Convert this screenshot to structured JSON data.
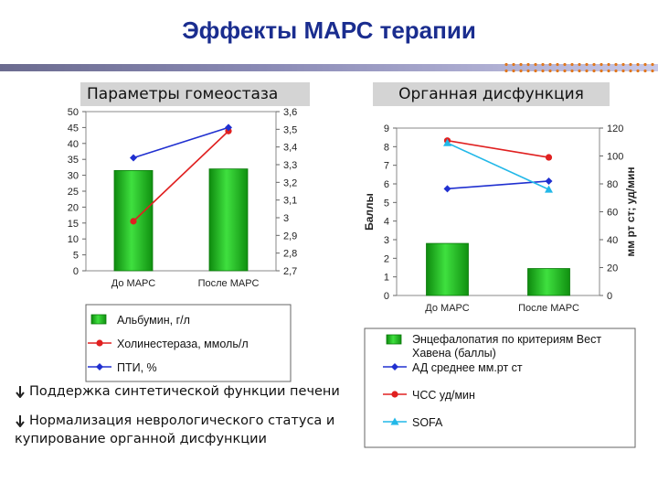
{
  "title": "Эффекты МАРС терапии",
  "left_header": "Параметры гомеостаза",
  "right_header": "Органная дисфункция",
  "bullets": [
    {
      "text": "Поддержка синтетической функции печени"
    },
    {
      "text1": "Нормализация неврологического статуса и",
      "text2": "купирование органной дисфункции"
    }
  ],
  "chart_data": [
    {
      "type": "bar",
      "categories": [
        "До МАРС",
        "После МАРС"
      ],
      "y_left": {
        "ticks": [
          "50",
          "45",
          "40",
          "35",
          "30",
          "25",
          "20",
          "15",
          "10",
          "5",
          "0"
        ],
        "range": [
          0,
          50
        ]
      },
      "y_right": {
        "ticks": [
          "3,6",
          "3,5",
          "3,4",
          "3,3",
          "3,2",
          "3,1",
          "3",
          "2,9",
          "2,8",
          "2,7"
        ],
        "range": [
          2.7,
          3.6
        ]
      },
      "series": [
        {
          "name": "Альбумин, г/л",
          "kind": "bar",
          "axis": "left",
          "color": "#22bb22",
          "values": [
            31.5,
            32
          ]
        },
        {
          "name": "Холинестераза, ммоль/л",
          "kind": "line",
          "axis": "right",
          "color": "#e02020",
          "values": [
            2.98,
            3.49
          ]
        },
        {
          "name": "ПТИ, %",
          "kind": "line",
          "axis": "left",
          "color": "#2030d0",
          "values": [
            35.5,
            45
          ]
        }
      ]
    },
    {
      "type": "bar",
      "categories": [
        "До МАРС",
        "После МАРС"
      ],
      "ylabel_left": "Баллы",
      "ylabel_right": "мм рт ст; уд/мин",
      "y_left": {
        "ticks": [
          "9",
          "8",
          "7",
          "6",
          "5",
          "4",
          "3",
          "2",
          "1",
          "0"
        ],
        "range": [
          0,
          9
        ]
      },
      "y_right": {
        "ticks": [
          "120",
          "100",
          "80",
          "60",
          "40",
          "20",
          "0"
        ],
        "range": [
          0,
          120
        ]
      },
      "series": [
        {
          "name": "Энцефалопатия по критериям Вест Хавена (баллы)",
          "kind": "bar",
          "axis": "left",
          "color": "#22bb22",
          "values": [
            2.8,
            1.45
          ]
        },
        {
          "name": "АД среднее мм.рт ст",
          "kind": "line",
          "axis": "right",
          "color": "#2030d0",
          "values": [
            76.5,
            82
          ]
        },
        {
          "name": "ЧСС уд/мин",
          "kind": "line",
          "axis": "right",
          "color": "#e02020",
          "values": [
            111,
            99
          ]
        },
        {
          "name": "SOFA",
          "kind": "line",
          "axis": "left",
          "color": "#22b8e8",
          "values": [
            8.2,
            5.7
          ]
        }
      ]
    }
  ]
}
